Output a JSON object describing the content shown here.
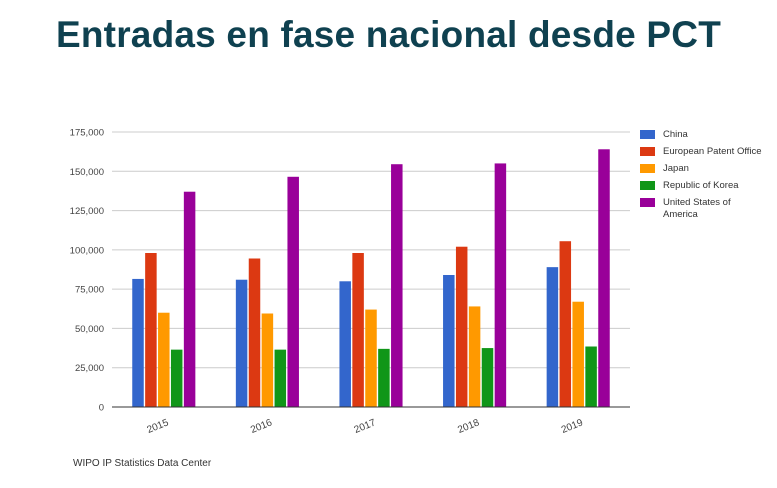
{
  "title": "Entradas en fase nacional desde PCT",
  "source": "WIPO IP Statistics Data Center",
  "chart_data": {
    "type": "bar",
    "categories": [
      "2015",
      "2016",
      "2017",
      "2018",
      "2019"
    ],
    "ylim": [
      0,
      175000
    ],
    "yticks": [
      0,
      25000,
      50000,
      75000,
      100000,
      125000,
      150000,
      175000
    ],
    "ytick_labels": [
      "0",
      "25,000",
      "50,000",
      "75,000",
      "100,000",
      "125,000",
      "150,000",
      "175,000"
    ],
    "grid": true,
    "legend_position": "right",
    "series": [
      {
        "name": "China",
        "color": "#3366cc",
        "values": [
          81500,
          81000,
          80000,
          84000,
          89000
        ]
      },
      {
        "name": "European Patent Office",
        "color": "#dc3912",
        "values": [
          98000,
          94500,
          98000,
          102000,
          105500
        ]
      },
      {
        "name": "Japan",
        "color": "#ff9900",
        "values": [
          60000,
          59500,
          62000,
          64000,
          67000
        ]
      },
      {
        "name": "Republic of Korea",
        "color": "#109618",
        "values": [
          36500,
          36500,
          37000,
          37500,
          38500
        ]
      },
      {
        "name": "United States of America",
        "color": "#990099",
        "values": [
          137000,
          146500,
          154500,
          155000,
          164000
        ]
      }
    ]
  }
}
